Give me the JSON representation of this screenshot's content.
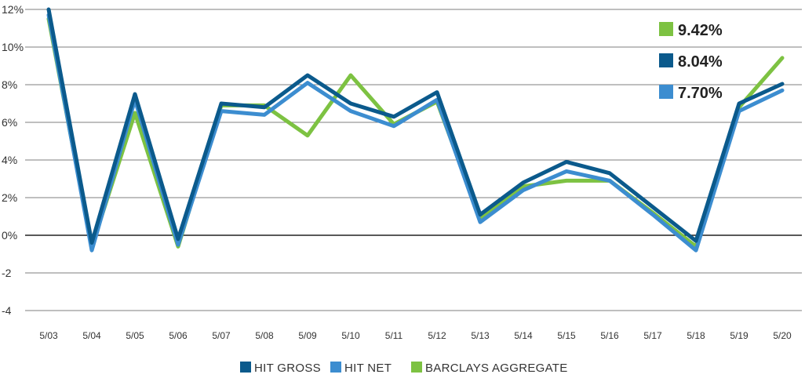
{
  "chart_data": {
    "type": "line",
    "categories": [
      "5/03",
      "5/04",
      "5/05",
      "5/06",
      "5/07",
      "5/08",
      "5/09",
      "5/10",
      "5/11",
      "5/12",
      "5/13",
      "5/14",
      "5/15",
      "5/16",
      "5/17",
      "5/18",
      "5/19",
      "5/20"
    ],
    "y_ticks": [
      "12%",
      "10%",
      "8%",
      "6%",
      "4%",
      "2%",
      "0%",
      "-2",
      "-4"
    ],
    "ylim": [
      -4,
      12
    ],
    "grid": true,
    "legend_position": "bottom",
    "series": [
      {
        "name": "HIT GROSS",
        "color": "#0b5a8c",
        "values": [
          12.0,
          -0.4,
          7.5,
          -0.2,
          7.0,
          6.8,
          8.5,
          7.0,
          6.3,
          7.6,
          1.1,
          2.8,
          3.9,
          3.3,
          1.5,
          -0.3,
          7.0,
          8.04
        ]
      },
      {
        "name": "HIT NET",
        "color": "#3c8dd0",
        "values": [
          11.7,
          -0.8,
          7.2,
          -0.5,
          6.6,
          6.4,
          8.1,
          6.6,
          5.8,
          7.2,
          0.7,
          2.4,
          3.4,
          2.9,
          1.1,
          -0.8,
          6.6,
          7.7
        ]
      },
      {
        "name": "BARCLAYS AGGREGATE",
        "color": "#7dc242",
        "values": [
          11.5,
          -0.6,
          6.5,
          -0.6,
          6.9,
          6.9,
          5.3,
          8.5,
          5.9,
          7.1,
          0.9,
          2.6,
          2.9,
          2.9,
          1.2,
          -0.6,
          6.8,
          9.42
        ]
      }
    ],
    "callouts": [
      {
        "label": "9.42%",
        "color": "#7dc242"
      },
      {
        "label": "8.04%",
        "color": "#0b5a8c"
      },
      {
        "label": "7.70%",
        "color": "#3c8dd0"
      }
    ]
  }
}
